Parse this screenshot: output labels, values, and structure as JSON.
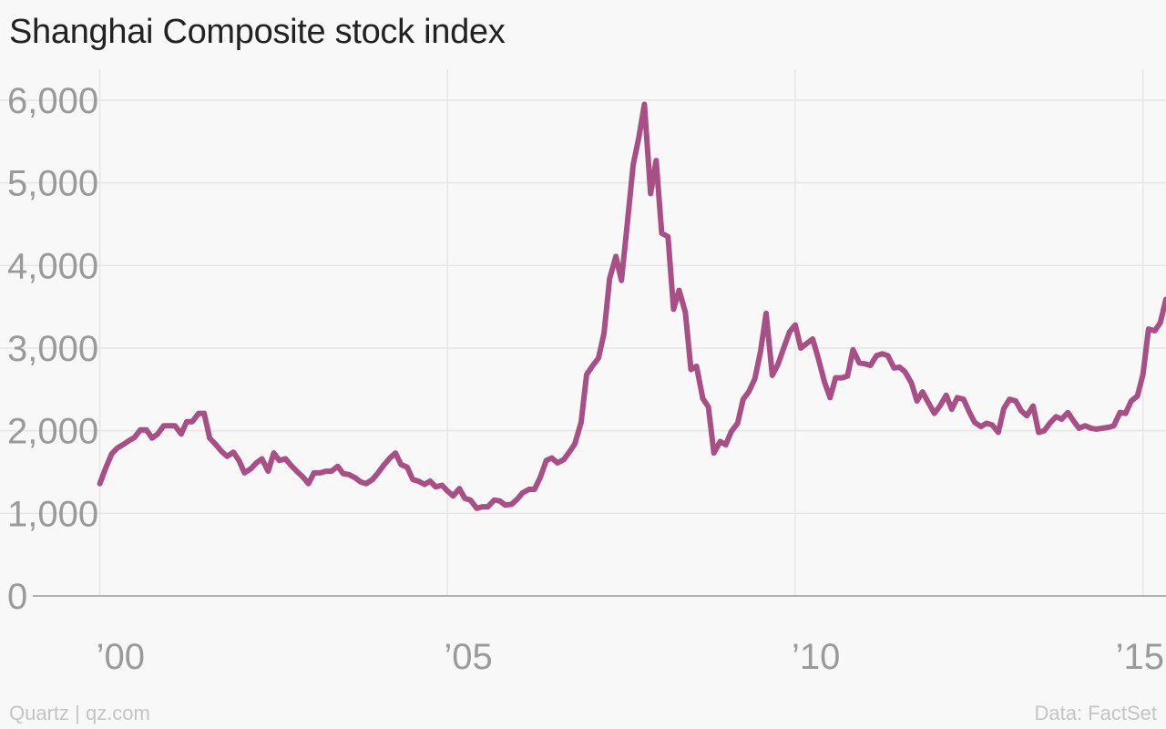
{
  "title": "Shanghai Composite stock index",
  "footer": {
    "source_left": "Quartz | qz.com",
    "source_right": "Data: FactSet"
  },
  "colors": {
    "background": "#f8f8f8",
    "line": "#a84f86",
    "grid": "#e6e6e6",
    "axis": "#9a9a9a",
    "tick_text": "#9a9a9a"
  },
  "chart_data": {
    "type": "line",
    "title": "Shanghai Composite stock index",
    "xlabel": "",
    "ylabel": "",
    "xlim": [
      1998.8,
      2015.2
    ],
    "ylim": [
      0,
      6000
    ],
    "grid": true,
    "y_ticks": [
      {
        "value": 0,
        "label": "0"
      },
      {
        "value": 1000,
        "label": "1,000"
      },
      {
        "value": 2000,
        "label": "2,000"
      },
      {
        "value": 3000,
        "label": "3,000"
      },
      {
        "value": 4000,
        "label": "4,000"
      },
      {
        "value": 5000,
        "label": "5,000"
      },
      {
        "value": 6000,
        "label": "6,000"
      }
    ],
    "x_ticks": [
      {
        "value": 2000,
        "label": "’00"
      },
      {
        "value": 2005,
        "label": "’05"
      },
      {
        "value": 2010,
        "label": "’10"
      },
      {
        "value": 2015,
        "label": "’15"
      }
    ],
    "series": [
      {
        "points": [
          [
            2000.0,
            1360
          ],
          [
            2000.08,
            1540
          ],
          [
            2000.17,
            1720
          ],
          [
            2000.25,
            1790
          ],
          [
            2000.33,
            1830
          ],
          [
            2000.42,
            1880
          ],
          [
            2000.5,
            1920
          ],
          [
            2000.58,
            2010
          ],
          [
            2000.67,
            2010
          ],
          [
            2000.75,
            1910
          ],
          [
            2000.83,
            1960
          ],
          [
            2000.92,
            2060
          ],
          [
            2001.0,
            2060
          ],
          [
            2001.08,
            2060
          ],
          [
            2001.17,
            1960
          ],
          [
            2001.25,
            2110
          ],
          [
            2001.33,
            2110
          ],
          [
            2001.42,
            2210
          ],
          [
            2001.5,
            2210
          ],
          [
            2001.58,
            1910
          ],
          [
            2001.67,
            1830
          ],
          [
            2001.75,
            1750
          ],
          [
            2001.83,
            1690
          ],
          [
            2001.92,
            1740
          ],
          [
            2002.0,
            1640
          ],
          [
            2002.08,
            1490
          ],
          [
            2002.17,
            1540
          ],
          [
            2002.25,
            1610
          ],
          [
            2002.33,
            1660
          ],
          [
            2002.42,
            1510
          ],
          [
            2002.5,
            1730
          ],
          [
            2002.58,
            1640
          ],
          [
            2002.67,
            1660
          ],
          [
            2002.75,
            1580
          ],
          [
            2002.83,
            1510
          ],
          [
            2002.92,
            1440
          ],
          [
            2003.0,
            1360
          ],
          [
            2003.08,
            1490
          ],
          [
            2003.17,
            1490
          ],
          [
            2003.25,
            1510
          ],
          [
            2003.33,
            1510
          ],
          [
            2003.42,
            1570
          ],
          [
            2003.5,
            1480
          ],
          [
            2003.58,
            1470
          ],
          [
            2003.67,
            1430
          ],
          [
            2003.75,
            1380
          ],
          [
            2003.83,
            1360
          ],
          [
            2003.92,
            1410
          ],
          [
            2004.0,
            1490
          ],
          [
            2004.08,
            1580
          ],
          [
            2004.17,
            1670
          ],
          [
            2004.25,
            1730
          ],
          [
            2004.33,
            1590
          ],
          [
            2004.42,
            1560
          ],
          [
            2004.5,
            1410
          ],
          [
            2004.58,
            1390
          ],
          [
            2004.67,
            1350
          ],
          [
            2004.75,
            1390
          ],
          [
            2004.83,
            1320
          ],
          [
            2004.92,
            1340
          ],
          [
            2005.0,
            1270
          ],
          [
            2005.08,
            1210
          ],
          [
            2005.17,
            1300
          ],
          [
            2005.25,
            1180
          ],
          [
            2005.33,
            1160
          ],
          [
            2005.42,
            1060
          ],
          [
            2005.5,
            1080
          ],
          [
            2005.58,
            1080
          ],
          [
            2005.67,
            1160
          ],
          [
            2005.75,
            1150
          ],
          [
            2005.83,
            1100
          ],
          [
            2005.92,
            1110
          ],
          [
            2006.0,
            1170
          ],
          [
            2006.08,
            1250
          ],
          [
            2006.17,
            1290
          ],
          [
            2006.25,
            1290
          ],
          [
            2006.33,
            1430
          ],
          [
            2006.42,
            1640
          ],
          [
            2006.5,
            1670
          ],
          [
            2006.58,
            1610
          ],
          [
            2006.67,
            1650
          ],
          [
            2006.75,
            1740
          ],
          [
            2006.83,
            1840
          ],
          [
            2006.92,
            2100
          ],
          [
            2007.0,
            2680
          ],
          [
            2007.08,
            2780
          ],
          [
            2007.17,
            2880
          ],
          [
            2007.25,
            3180
          ],
          [
            2007.33,
            3840
          ],
          [
            2007.42,
            4110
          ],
          [
            2007.5,
            3820
          ],
          [
            2007.58,
            4470
          ],
          [
            2007.67,
            5220
          ],
          [
            2007.75,
            5550
          ],
          [
            2007.83,
            5950
          ],
          [
            2007.92,
            4870
          ],
          [
            2008.0,
            5270
          ],
          [
            2008.08,
            4390
          ],
          [
            2008.17,
            4350
          ],
          [
            2008.25,
            3470
          ],
          [
            2008.33,
            3700
          ],
          [
            2008.42,
            3430
          ],
          [
            2008.5,
            2740
          ],
          [
            2008.58,
            2780
          ],
          [
            2008.67,
            2390
          ],
          [
            2008.75,
            2290
          ],
          [
            2008.83,
            1730
          ],
          [
            2008.92,
            1870
          ],
          [
            2009.0,
            1830
          ],
          [
            2009.08,
            1990
          ],
          [
            2009.17,
            2090
          ],
          [
            2009.25,
            2380
          ],
          [
            2009.33,
            2470
          ],
          [
            2009.42,
            2630
          ],
          [
            2009.5,
            2960
          ],
          [
            2009.58,
            3420
          ],
          [
            2009.67,
            2670
          ],
          [
            2009.75,
            2800
          ],
          [
            2009.83,
            2990
          ],
          [
            2009.92,
            3200
          ],
          [
            2010.0,
            3280
          ],
          [
            2010.08,
            3000
          ],
          [
            2010.17,
            3060
          ],
          [
            2010.25,
            3110
          ],
          [
            2010.33,
            2880
          ],
          [
            2010.42,
            2590
          ],
          [
            2010.5,
            2400
          ],
          [
            2010.58,
            2640
          ],
          [
            2010.67,
            2640
          ],
          [
            2010.75,
            2660
          ],
          [
            2010.83,
            2980
          ],
          [
            2010.92,
            2820
          ],
          [
            2011.0,
            2810
          ],
          [
            2011.08,
            2790
          ],
          [
            2011.17,
            2910
          ],
          [
            2011.25,
            2930
          ],
          [
            2011.33,
            2910
          ],
          [
            2011.42,
            2760
          ],
          [
            2011.5,
            2770
          ],
          [
            2011.58,
            2710
          ],
          [
            2011.67,
            2580
          ],
          [
            2011.75,
            2360
          ],
          [
            2011.83,
            2470
          ],
          [
            2011.92,
            2330
          ],
          [
            2012.0,
            2210
          ],
          [
            2012.08,
            2300
          ],
          [
            2012.17,
            2430
          ],
          [
            2012.25,
            2260
          ],
          [
            2012.33,
            2400
          ],
          [
            2012.42,
            2380
          ],
          [
            2012.5,
            2230
          ],
          [
            2012.58,
            2100
          ],
          [
            2012.67,
            2050
          ],
          [
            2012.75,
            2090
          ],
          [
            2012.83,
            2070
          ],
          [
            2012.92,
            1980
          ],
          [
            2013.0,
            2270
          ],
          [
            2013.08,
            2380
          ],
          [
            2013.17,
            2360
          ],
          [
            2013.25,
            2240
          ],
          [
            2013.33,
            2180
          ],
          [
            2013.42,
            2300
          ],
          [
            2013.5,
            1980
          ],
          [
            2013.58,
            2000
          ],
          [
            2013.67,
            2100
          ],
          [
            2013.75,
            2170
          ],
          [
            2013.83,
            2140
          ],
          [
            2013.92,
            2220
          ],
          [
            2014.0,
            2120
          ],
          [
            2014.08,
            2030
          ],
          [
            2014.17,
            2060
          ],
          [
            2014.25,
            2030
          ],
          [
            2014.33,
            2020
          ],
          [
            2014.42,
            2030
          ],
          [
            2014.5,
            2040
          ],
          [
            2014.58,
            2060
          ],
          [
            2014.67,
            2220
          ],
          [
            2014.75,
            2210
          ],
          [
            2014.83,
            2360
          ],
          [
            2014.92,
            2420
          ],
          [
            2015.0,
            2680
          ],
          [
            2015.08,
            3230
          ],
          [
            2015.17,
            3210
          ],
          [
            2015.25,
            3310
          ],
          [
            2015.33,
            3590
          ]
        ]
      }
    ]
  }
}
